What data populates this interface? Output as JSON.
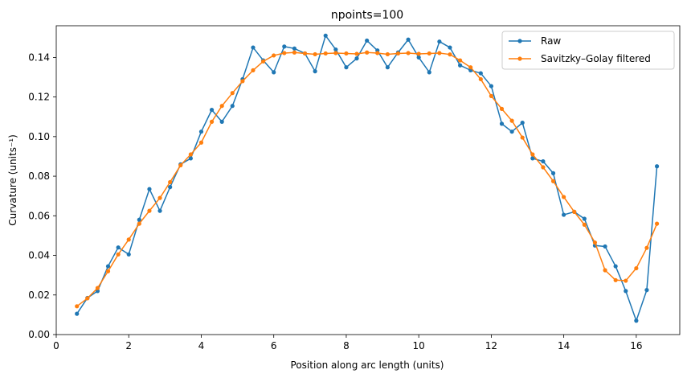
{
  "chart_data": {
    "type": "line",
    "title": "npoints=100",
    "xlabel": "Position along arc length (units)",
    "ylabel": "Curvature (units⁻¹)",
    "xlim": [
      0,
      17.2
    ],
    "ylim": [
      0,
      0.156
    ],
    "xticks": [
      0,
      2,
      4,
      6,
      8,
      10,
      12,
      14,
      16
    ],
    "xtick_labels": [
      "0",
      "2",
      "4",
      "6",
      "8",
      "10",
      "12",
      "14",
      "16"
    ],
    "yticks": [
      0.0,
      0.02,
      0.04,
      0.06,
      0.08,
      0.1,
      0.12,
      0.14
    ],
    "ytick_labels": [
      "0.00",
      "0.02",
      "0.04",
      "0.06",
      "0.08",
      "0.10",
      "0.12",
      "0.14"
    ],
    "grid": false,
    "legend_position": "top-right",
    "x": [
      0.57,
      0.86,
      1.14,
      1.43,
      1.71,
      2.0,
      2.29,
      2.57,
      2.86,
      3.14,
      3.43,
      3.71,
      4.0,
      4.29,
      4.57,
      4.86,
      5.14,
      5.43,
      5.71,
      6.0,
      6.29,
      6.57,
      6.86,
      7.14,
      7.43,
      7.71,
      8.0,
      8.29,
      8.57,
      8.86,
      9.14,
      9.43,
      9.71,
      10.0,
      10.29,
      10.57,
      10.86,
      11.14,
      11.43,
      11.71,
      12.0,
      12.29,
      12.57,
      12.86,
      13.14,
      13.43,
      13.71,
      14.0,
      14.29,
      14.57,
      14.86,
      15.14,
      15.43,
      15.71,
      16.0,
      16.29,
      16.57
    ],
    "series": [
      {
        "name": "Raw",
        "color": "#1f77b4",
        "values": [
          0.0105,
          0.0185,
          0.022,
          0.0345,
          0.044,
          0.0405,
          0.058,
          0.0735,
          0.0625,
          0.0745,
          0.086,
          0.089,
          0.1025,
          0.1135,
          0.1075,
          0.1155,
          0.129,
          0.145,
          0.1385,
          0.1325,
          0.1455,
          0.1445,
          0.142,
          0.133,
          0.151,
          0.144,
          0.135,
          0.1395,
          0.1485,
          0.1435,
          0.135,
          0.1425,
          0.149,
          0.14,
          0.1325,
          0.148,
          0.145,
          0.136,
          0.1335,
          0.132,
          0.1255,
          0.1065,
          0.1025,
          0.107,
          0.089,
          0.0875,
          0.0815,
          0.0605,
          0.062,
          0.0585,
          0.045,
          0.0445,
          0.0345,
          0.022,
          0.007,
          0.0225,
          0.085
        ]
      },
      {
        "name": "Savitzky–Golay filtered",
        "color": "#ff7f0e",
        "values": [
          0.0143,
          0.0183,
          0.0235,
          0.032,
          0.0405,
          0.048,
          0.056,
          0.0625,
          0.069,
          0.077,
          0.0855,
          0.091,
          0.097,
          0.1075,
          0.1155,
          0.122,
          0.128,
          0.1335,
          0.138,
          0.141,
          0.1422,
          0.1425,
          0.142,
          0.1416,
          0.142,
          0.1422,
          0.142,
          0.1418,
          0.1425,
          0.1422,
          0.1416,
          0.142,
          0.1422,
          0.1418,
          0.142,
          0.1422,
          0.1415,
          0.1385,
          0.135,
          0.129,
          0.1205,
          0.114,
          0.108,
          0.0995,
          0.091,
          0.0845,
          0.0775,
          0.0695,
          0.062,
          0.0555,
          0.0465,
          0.0325,
          0.0275,
          0.0272,
          0.0335,
          0.0438,
          0.056
        ]
      }
    ]
  }
}
